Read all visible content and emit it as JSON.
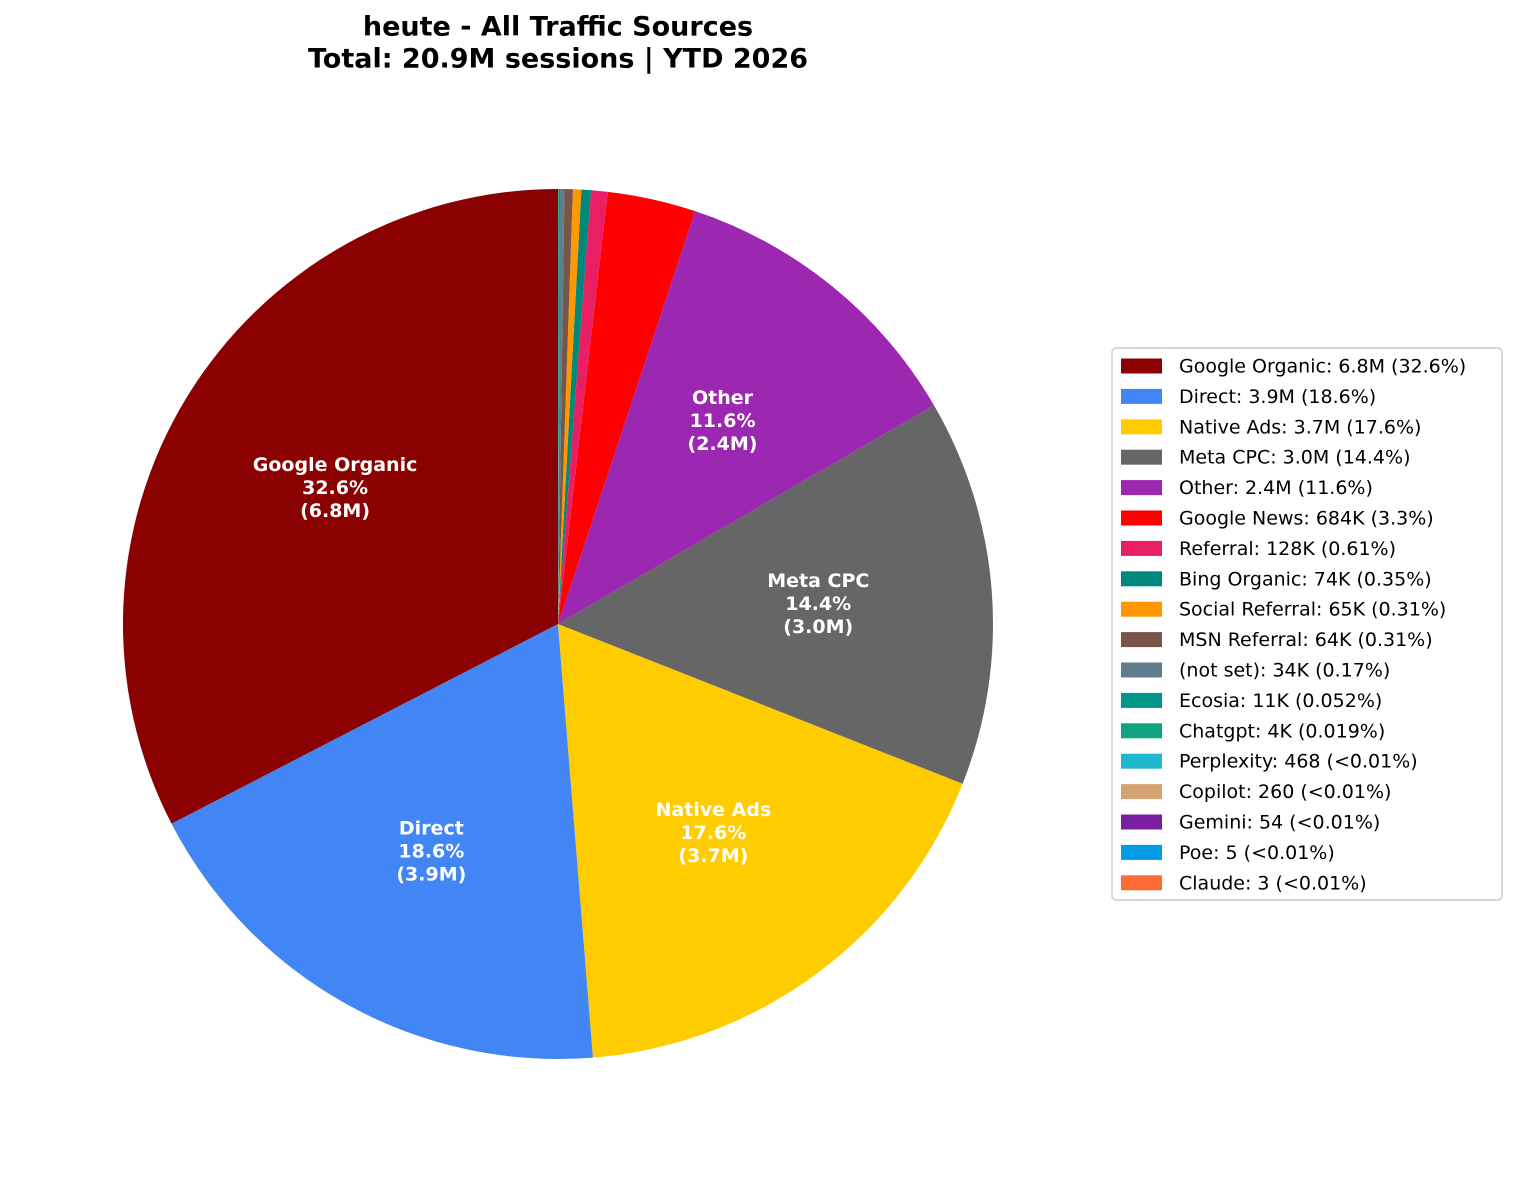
{
  "chart_data": {
    "type": "pie",
    "title": "heute - All Traffic Sources",
    "subtitle": "Total: 20.9M sessions | YTD 2026",
    "categories": [
      "Google Organic",
      "Direct",
      "Native Ads",
      "Meta CPC",
      "Other",
      "Google News",
      "Referral",
      "Bing Organic",
      "Social Referral",
      "MSN Referral",
      "(not set)",
      "Ecosia",
      "Chatgpt",
      "Perplexity",
      "Copilot",
      "Gemini",
      "Poe",
      "Claude"
    ],
    "values": [
      6800000,
      3900000,
      3700000,
      3000000,
      2400000,
      684000,
      128000,
      74000,
      65000,
      64000,
      34000,
      11000,
      4000,
      468,
      260,
      54,
      5,
      3
    ],
    "colors": [
      "#8b0000",
      "#4285f4",
      "#ffcc00",
      "#666666",
      "#9c27b0",
      "#ff0000",
      "#e91e63",
      "#00897b",
      "#ff9800",
      "#795548",
      "#607d8b",
      "#009688",
      "#10a37f",
      "#20b8cd",
      "#d4a373",
      "#7b1fa2",
      "#039be5",
      "#ff6b35"
    ],
    "slice_labels": [
      [
        "Google Organic",
        "32.6%",
        "(6.8M)"
      ],
      [
        "Direct",
        "18.6%",
        "(3.9M)"
      ],
      [
        "Native Ads",
        "17.6%",
        "(3.7M)"
      ],
      [
        "Meta CPC",
        "14.4%",
        "(3.0M)"
      ],
      [
        "Other",
        "11.6%",
        "(2.4M)"
      ],
      null,
      null,
      null,
      null,
      null,
      null,
      null,
      null,
      null,
      null,
      null,
      null,
      null
    ],
    "legend_labels": [
      "Google Organic: 6.8M (32.6%)",
      "Direct: 3.9M (18.6%)",
      "Native Ads: 3.7M (17.6%)",
      "Meta CPC: 3.0M (14.4%)",
      "Other: 2.4M (11.6%)",
      "Google News: 684K (3.3%)",
      "Referral: 128K (0.61%)",
      "Bing Organic: 74K (0.35%)",
      "Social Referral: 65K (0.31%)",
      "MSN Referral: 64K (0.31%)",
      "(not set): 34K (0.17%)",
      "Ecosia: 11K (0.052%)",
      "Chatgpt: 4K (0.019%)",
      "Perplexity: 468 (<0.01%)",
      "Copilot: 260 (<0.01%)",
      "Gemini: 54 (<0.01%)",
      "Poe: 5 (<0.01%)",
      "Claude: 3 (<0.01%)"
    ],
    "legend": "right"
  }
}
